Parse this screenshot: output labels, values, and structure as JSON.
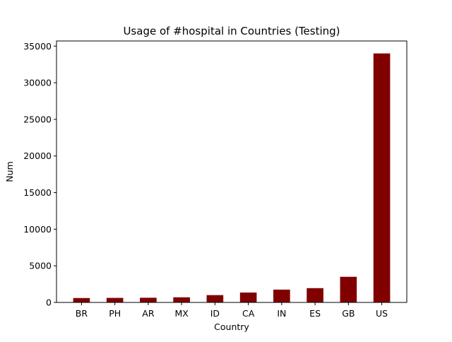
{
  "chart_data": {
    "type": "bar",
    "title": "Usage of #hospital in Countries (Testing)",
    "xlabel": "Country",
    "ylabel": "Num",
    "categories": [
      "BR",
      "PH",
      "AR",
      "MX",
      "ID",
      "CA",
      "IN",
      "ES",
      "GB",
      "US"
    ],
    "values": [
      600,
      620,
      640,
      700,
      1000,
      1350,
      1750,
      1950,
      3500,
      34000
    ],
    "ylim": [
      0,
      35700
    ],
    "yticks": [
      0,
      5000,
      10000,
      15000,
      20000,
      25000,
      30000,
      35000
    ],
    "bar_color": "#800000",
    "grid": false
  }
}
